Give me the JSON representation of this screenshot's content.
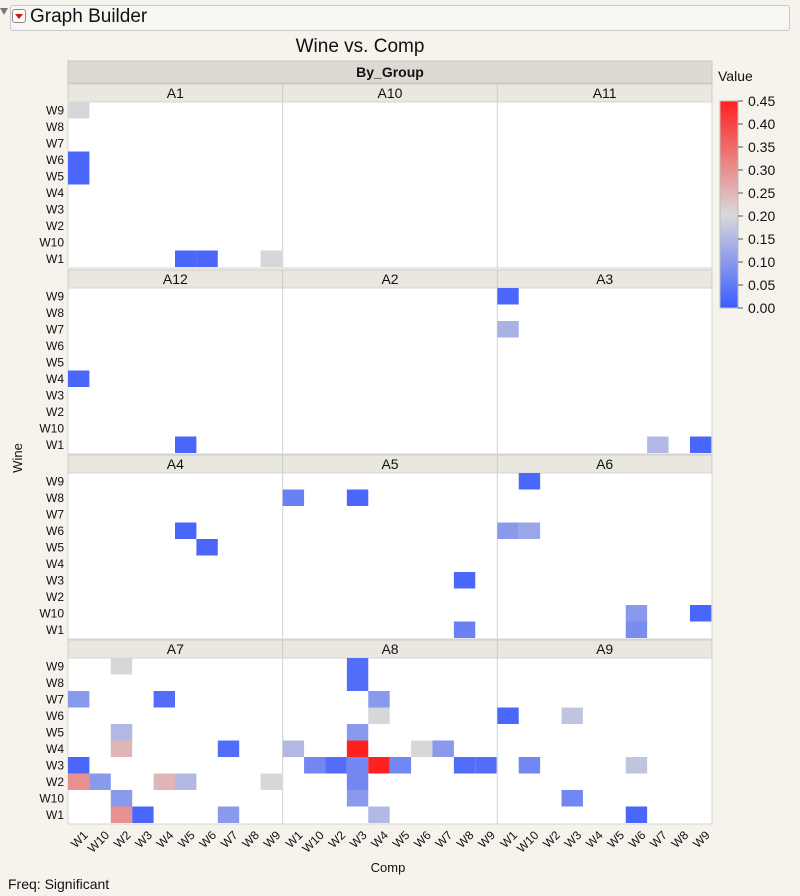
{
  "app": {
    "title": "Graph Builder",
    "footer": "Freq: Significant"
  },
  "chart_data": {
    "type": "heatmap",
    "title": "Wine vs. Comp",
    "group_label": "By_Group",
    "xlabel": "Comp",
    "ylabel": "Wine",
    "x_categories": [
      "W1",
      "W10",
      "W2",
      "W3",
      "W4",
      "W5",
      "W6",
      "W7",
      "W8",
      "W9"
    ],
    "y_categories": [
      "W1",
      "W10",
      "W2",
      "W3",
      "W4",
      "W5",
      "W6",
      "W7",
      "W8",
      "W9"
    ],
    "legend": {
      "title": "Value",
      "min": 0,
      "max": 0.45,
      "ticks": [
        "0.45",
        "0.40",
        "0.35",
        "0.30",
        "0.25",
        "0.20",
        "0.15",
        "0.10",
        "0.05",
        "0.00"
      ],
      "colors": {
        "low": "#3b5bff",
        "mid": "#d9d9d9",
        "high": "#ff2020"
      }
    },
    "panels": [
      {
        "name": "A1",
        "cells": [
          {
            "x": "W1",
            "y": "W9",
            "value": 0.2
          },
          {
            "x": "W1",
            "y": "W6",
            "value": 0.02
          },
          {
            "x": "W1",
            "y": "W5",
            "value": 0.02
          },
          {
            "x": "W5",
            "y": "W1",
            "value": 0.02
          },
          {
            "x": "W6",
            "y": "W1",
            "value": 0.02
          },
          {
            "x": "W9",
            "y": "W1",
            "value": 0.2
          }
        ]
      },
      {
        "name": "A10",
        "cells": []
      },
      {
        "name": "A11",
        "cells": []
      },
      {
        "name": "A12",
        "cells": [
          {
            "x": "W1",
            "y": "W4",
            "value": 0.02
          },
          {
            "x": "W5",
            "y": "W1",
            "value": 0.02
          }
        ]
      },
      {
        "name": "A2",
        "cells": []
      },
      {
        "name": "A3",
        "cells": [
          {
            "x": "W1",
            "y": "W9",
            "value": 0.02
          },
          {
            "x": "W1",
            "y": "W7",
            "value": 0.14
          },
          {
            "x": "W7",
            "y": "W1",
            "value": 0.15
          },
          {
            "x": "W9",
            "y": "W1",
            "value": 0.02
          }
        ]
      },
      {
        "name": "A4",
        "cells": [
          {
            "x": "W5",
            "y": "W6",
            "value": 0.02
          },
          {
            "x": "W6",
            "y": "W5",
            "value": 0.02
          }
        ]
      },
      {
        "name": "A5",
        "cells": [
          {
            "x": "W1",
            "y": "W8",
            "value": 0.06
          },
          {
            "x": "W3",
            "y": "W8",
            "value": 0.02
          },
          {
            "x": "W8",
            "y": "W3",
            "value": 0.02
          },
          {
            "x": "W8",
            "y": "W1",
            "value": 0.06
          }
        ]
      },
      {
        "name": "A6",
        "cells": [
          {
            "x": "W10",
            "y": "W9",
            "value": 0.02
          },
          {
            "x": "W1",
            "y": "W6",
            "value": 0.1
          },
          {
            "x": "W10",
            "y": "W6",
            "value": 0.12
          },
          {
            "x": "W6",
            "y": "W10",
            "value": 0.1
          },
          {
            "x": "W9",
            "y": "W10",
            "value": 0.02
          },
          {
            "x": "W6",
            "y": "W1",
            "value": 0.08
          }
        ]
      },
      {
        "name": "A7",
        "cells": [
          {
            "x": "W2",
            "y": "W9",
            "value": 0.2
          },
          {
            "x": "W1",
            "y": "W7",
            "value": 0.1
          },
          {
            "x": "W4",
            "y": "W7",
            "value": 0.03
          },
          {
            "x": "W2",
            "y": "W5",
            "value": 0.15
          },
          {
            "x": "W2",
            "y": "W4",
            "value": 0.25
          },
          {
            "x": "W7",
            "y": "W4",
            "value": 0.03
          },
          {
            "x": "W1",
            "y": "W3",
            "value": 0.02
          },
          {
            "x": "W1",
            "y": "W2",
            "value": 0.3
          },
          {
            "x": "W10",
            "y": "W2",
            "value": 0.1
          },
          {
            "x": "W4",
            "y": "W2",
            "value": 0.25
          },
          {
            "x": "W5",
            "y": "W2",
            "value": 0.15
          },
          {
            "x": "W9",
            "y": "W2",
            "value": 0.2
          },
          {
            "x": "W2",
            "y": "W10",
            "value": 0.1
          },
          {
            "x": "W2",
            "y": "W1",
            "value": 0.3
          },
          {
            "x": "W3",
            "y": "W1",
            "value": 0.02
          },
          {
            "x": "W7",
            "y": "W1",
            "value": 0.1
          }
        ]
      },
      {
        "name": "A8",
        "cells": [
          {
            "x": "W3",
            "y": "W9",
            "value": 0.03
          },
          {
            "x": "W3",
            "y": "W8",
            "value": 0.03
          },
          {
            "x": "W4",
            "y": "W7",
            "value": 0.1
          },
          {
            "x": "W4",
            "y": "W6",
            "value": 0.2
          },
          {
            "x": "W3",
            "y": "W5",
            "value": 0.1
          },
          {
            "x": "W1",
            "y": "W4",
            "value": 0.15
          },
          {
            "x": "W3",
            "y": "W4",
            "value": 0.45
          },
          {
            "x": "W6",
            "y": "W4",
            "value": 0.2
          },
          {
            "x": "W7",
            "y": "W4",
            "value": 0.1
          },
          {
            "x": "W10",
            "y": "W3",
            "value": 0.07
          },
          {
            "x": "W2",
            "y": "W3",
            "value": 0.03
          },
          {
            "x": "W3",
            "y": "W3",
            "value": 0.07
          },
          {
            "x": "W4",
            "y": "W3",
            "value": 0.45
          },
          {
            "x": "W5",
            "y": "W3",
            "value": 0.07
          },
          {
            "x": "W8",
            "y": "W3",
            "value": 0.03
          },
          {
            "x": "W9",
            "y": "W3",
            "value": 0.03
          },
          {
            "x": "W3",
            "y": "W2",
            "value": 0.07
          },
          {
            "x": "W3",
            "y": "W10",
            "value": 0.1
          },
          {
            "x": "W4",
            "y": "W1",
            "value": 0.15
          }
        ]
      },
      {
        "name": "A9",
        "cells": [
          {
            "x": "W1",
            "y": "W6",
            "value": 0.02
          },
          {
            "x": "W3",
            "y": "W6",
            "value": 0.17
          },
          {
            "x": "W10",
            "y": "W3",
            "value": 0.07
          },
          {
            "x": "W6",
            "y": "W3",
            "value": 0.17
          },
          {
            "x": "W3",
            "y": "W10",
            "value": 0.07
          },
          {
            "x": "W6",
            "y": "W1",
            "value": 0.02
          }
        ]
      }
    ]
  }
}
